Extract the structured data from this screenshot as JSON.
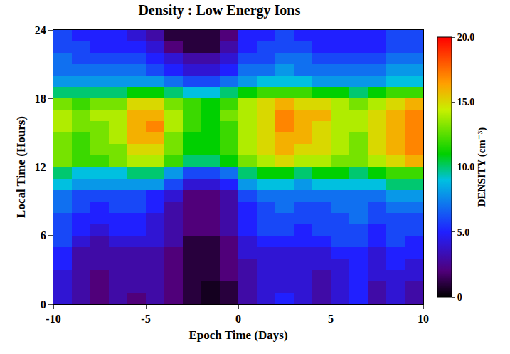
{
  "chart_data": {
    "type": "heatmap",
    "title": "Density : Low Energy Ions",
    "x_label": "Epoch Time (Days)",
    "y_label": "Local Time (Hours)",
    "colorbar_title": "DENSITY (cm⁻³)",
    "x": [
      -9.5,
      -8.5,
      -7.5,
      -6.5,
      -5.5,
      -4.5,
      -3.5,
      -2.5,
      -1.5,
      -0.5,
      0.5,
      1.5,
      2.5,
      3.5,
      4.5,
      5.5,
      6.5,
      7.5,
      8.5,
      9.5
    ],
    "y": [
      0.5,
      1.5,
      2.5,
      3.5,
      4.5,
      5.5,
      6.5,
      7.5,
      8.5,
      9.5,
      10.5,
      11.5,
      12.5,
      13.5,
      14.5,
      15.5,
      16.5,
      17.5,
      18.5,
      19.5,
      20.5,
      21.5,
      22.5,
      23.5
    ],
    "z": [
      [
        4,
        3,
        2,
        3,
        2,
        3,
        2,
        1,
        0.5,
        1,
        3,
        4,
        5,
        4,
        3,
        4,
        5,
        3,
        4,
        3
      ],
      [
        4,
        3,
        2,
        3,
        3,
        3,
        2,
        1,
        0.5,
        1,
        3,
        4,
        4,
        4,
        3,
        4,
        5,
        3,
        4,
        3
      ],
      [
        4,
        3,
        2,
        3,
        3,
        3,
        2,
        1,
        1,
        2,
        3,
        4,
        4,
        4,
        3,
        4,
        5,
        4,
        4,
        4
      ],
      [
        5,
        3,
        3,
        3,
        3,
        3,
        2,
        1,
        1,
        2,
        3,
        4,
        4,
        4,
        4,
        4,
        5,
        4,
        5,
        4
      ],
      [
        5,
        3,
        3,
        3,
        3,
        3,
        2,
        1,
        1,
        2,
        4,
        4,
        4,
        4,
        4,
        5,
        5,
        4,
        5,
        5
      ],
      [
        6,
        4,
        3,
        4,
        4,
        4,
        3,
        1,
        1,
        2,
        4,
        5,
        5,
        5,
        5,
        6,
        6,
        5,
        6,
        5
      ],
      [
        6,
        5,
        4,
        5,
        5,
        4,
        3,
        2,
        2,
        3,
        5,
        6,
        6,
        5,
        6,
        6,
        6,
        5,
        6,
        6
      ],
      [
        6,
        5,
        5,
        5,
        5,
        4,
        3,
        2,
        2,
        3,
        5,
        6,
        6,
        6,
        6,
        6,
        7,
        6,
        6,
        6
      ],
      [
        7,
        6,
        5,
        6,
        6,
        5,
        3,
        2,
        2,
        3,
        5,
        6,
        7,
        6,
        6,
        7,
        7,
        6,
        7,
        7
      ],
      [
        7,
        6,
        6,
        6,
        6,
        5,
        4,
        2,
        2,
        3,
        6,
        7,
        7,
        7,
        7,
        7,
        7,
        7,
        8,
        8
      ],
      [
        9,
        8,
        8,
        8,
        8,
        8,
        6,
        4,
        4,
        5,
        8,
        9,
        9,
        8,
        9,
        9,
        9,
        9,
        10,
        10
      ],
      [
        10,
        9,
        9,
        9,
        10,
        10,
        8,
        6,
        6,
        7,
        10,
        11,
        11,
        10,
        11,
        11,
        10,
        11,
        12,
        12
      ],
      [
        13,
        12,
        12,
        13,
        14,
        14,
        12,
        10,
        10,
        11,
        13,
        14,
        15,
        14,
        14,
        13,
        13,
        14,
        15,
        16
      ],
      [
        13,
        12,
        13,
        13,
        15,
        15,
        13,
        11,
        11,
        12,
        14,
        15,
        16,
        15,
        15,
        14,
        13,
        15,
        16,
        17
      ],
      [
        13,
        12,
        13,
        14,
        16,
        16,
        13,
        11,
        11,
        12,
        14,
        15,
        16,
        16,
        15,
        14,
        13,
        15,
        16,
        17
      ],
      [
        14,
        13,
        13,
        14,
        16,
        17,
        14,
        12,
        11,
        12,
        14,
        15,
        17,
        16,
        15,
        14,
        14,
        15,
        16,
        17
      ],
      [
        14,
        13,
        14,
        14,
        16,
        16,
        14,
        12,
        11,
        13,
        14,
        15,
        17,
        16,
        16,
        14,
        14,
        15,
        16,
        17
      ],
      [
        13,
        12,
        13,
        13,
        15,
        15,
        13,
        12,
        11,
        12,
        14,
        15,
        16,
        15,
        15,
        14,
        13,
        14,
        15,
        16
      ],
      [
        10,
        10,
        10,
        10,
        11,
        11,
        10,
        9,
        9,
        10,
        11,
        12,
        12,
        12,
        11,
        11,
        10,
        11,
        12,
        12
      ],
      [
        8,
        8,
        8,
        8,
        8,
        8,
        7,
        6,
        6,
        7,
        8,
        9,
        9,
        9,
        8,
        8,
        8,
        8,
        9,
        9
      ],
      [
        7,
        7,
        7,
        7,
        7,
        6,
        5,
        4,
        4,
        5,
        7,
        7,
        8,
        7,
        7,
        7,
        7,
        7,
        8,
        8
      ],
      [
        7,
        6,
        6,
        6,
        6,
        5,
        4,
        3,
        3,
        4,
        6,
        6,
        7,
        7,
        6,
        6,
        6,
        6,
        7,
        7
      ],
      [
        6,
        6,
        5,
        5,
        5,
        4,
        2,
        1,
        1,
        3,
        5,
        6,
        6,
        6,
        5,
        5,
        5,
        5,
        6,
        6
      ],
      [
        6,
        5,
        5,
        5,
        4,
        3,
        1,
        1,
        1,
        2,
        5,
        5,
        6,
        5,
        5,
        5,
        5,
        5,
        6,
        6
      ]
    ],
    "xlim": [
      -10,
      10
    ],
    "xticks": [
      -10,
      -5,
      0,
      5,
      10
    ],
    "ylim": [
      0,
      24
    ],
    "yticks": [
      0,
      6,
      12,
      18,
      24
    ],
    "zlim": [
      0,
      20
    ],
    "zticks": [
      0,
      {
        "value": 5,
        "label": "5.0"
      },
      {
        "value": 10,
        "label": "10.0"
      },
      {
        "value": 15,
        "label": "15.0"
      },
      {
        "value": 20,
        "label": "20.0"
      }
    ]
  }
}
